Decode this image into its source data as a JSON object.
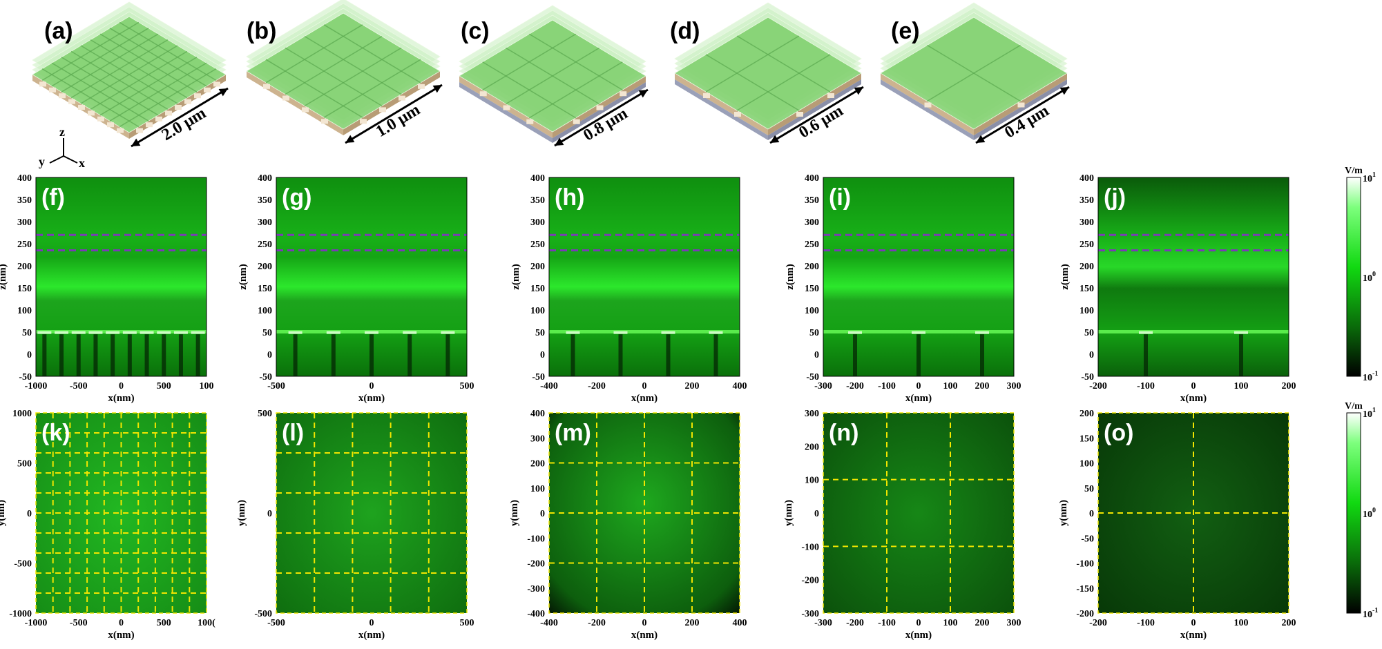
{
  "figure": {
    "top_labels": [
      "(a)",
      "(b)",
      "(c)",
      "(d)",
      "(e)"
    ],
    "periods": [
      "2.0 μm",
      "1.0 μm",
      "0.8 μm",
      "0.6 μm",
      "0.4 μm"
    ],
    "grid_counts": [
      10,
      5,
      4,
      3,
      2
    ],
    "axes_triad": {
      "z": "z",
      "y": "y",
      "x": "x"
    },
    "side_labels": [
      "(f)",
      "(g)",
      "(h)",
      "(i)",
      "(j)"
    ],
    "side_xlabel": "x(nm)",
    "side_ylabel": "z(nm)",
    "side_z_ticks": [
      "400",
      "350",
      "300",
      "250",
      "200",
      "150",
      "100",
      "50",
      "0",
      "-50"
    ],
    "side_x_ticks": [
      [
        "-1000",
        "-500",
        "0",
        "500",
        "100"
      ],
      [
        "-500",
        "0",
        "500"
      ],
      [
        "-400",
        "-200",
        "0",
        "200",
        "400"
      ],
      [
        "-300",
        "-200",
        "-100",
        "0",
        "100",
        "200",
        "300"
      ],
      [
        "-200",
        "-100",
        "0",
        "100",
        "200"
      ]
    ],
    "top_view_labels": [
      "(k)",
      "(l)",
      "(m)",
      "(n)",
      "(o)"
    ],
    "top_xlabel": "x(nm)",
    "top_ylabel": "y(nm)",
    "top_x_ticks": [
      [
        "-1000",
        "-500",
        "0",
        "500",
        "100("
      ],
      [
        "-500",
        "0",
        "500"
      ],
      [
        "-400",
        "-200",
        "0",
        "200",
        "400"
      ],
      [
        "-300",
        "-200",
        "-100",
        "0",
        "100",
        "200",
        "300"
      ],
      [
        "-200",
        "-100",
        "0",
        "100",
        "200"
      ]
    ],
    "top_y_ticks": [
      [
        "1000",
        "500",
        "0",
        "-500",
        "-1000"
      ],
      [
        "500",
        "0",
        "-500"
      ],
      [
        "400",
        "300",
        "200",
        "100",
        "0",
        "-100",
        "-200",
        "-300",
        "-400"
      ],
      [
        "300",
        "200",
        "100",
        "0",
        "-100",
        "-200",
        "-300"
      ],
      [
        "200",
        "150",
        "100",
        "50",
        "0",
        "-50",
        "-100",
        "-150",
        "-200"
      ]
    ],
    "colorbar": {
      "unit": "V/m",
      "ticks": [
        {
          "base": "10",
          "exp": "1"
        },
        {
          "base": "10",
          "exp": "0"
        },
        {
          "base": "10",
          "exp": "-1"
        }
      ]
    },
    "colors": {
      "field_bright": "#39ff14",
      "field_mid": "#1aa81a",
      "field_dark": "#052805",
      "dashed_purple": "#7a3bb5",
      "dashed_yellow": "#f2e600"
    }
  }
}
